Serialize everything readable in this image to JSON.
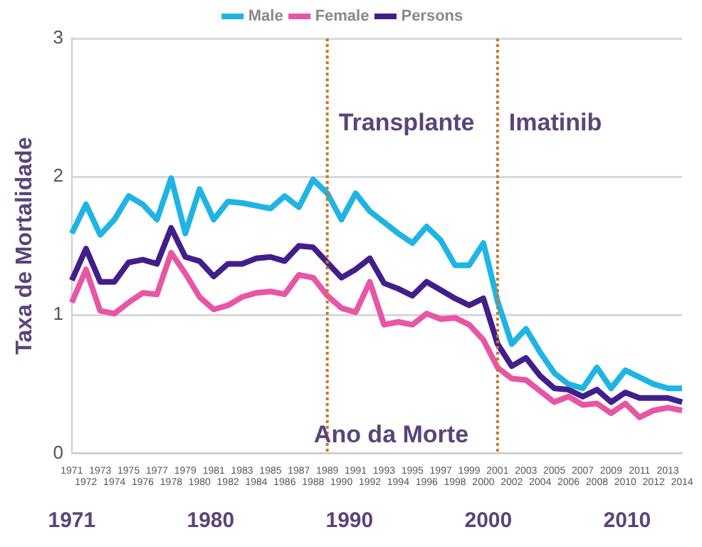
{
  "chart_data": {
    "type": "line",
    "xlabel": "Ano da Morte",
    "ylabel": "Taxa de Mortalidade",
    "categories": [
      "1971",
      "1972",
      "1973",
      "1974",
      "1975",
      "1976",
      "1977",
      "1978",
      "1979",
      "1980",
      "1981",
      "1982",
      "1983",
      "1984",
      "1985",
      "1986",
      "1987",
      "1988",
      "1989",
      "1990",
      "1991",
      "1992",
      "1993",
      "1994",
      "1995",
      "1996",
      "1997",
      "1998",
      "1999",
      "2000",
      "2001",
      "2002",
      "2003",
      "2004",
      "2005",
      "2006",
      "2007",
      "2008",
      "2009",
      "2010",
      "2011",
      "2012",
      "2013",
      "2014"
    ],
    "series": [
      {
        "name": "Male",
        "color": "#1eb4e4",
        "values": [
          1.59,
          1.8,
          1.58,
          1.69,
          1.86,
          1.8,
          1.69,
          1.99,
          1.59,
          1.91,
          1.69,
          1.82,
          1.81,
          1.79,
          1.77,
          1.86,
          1.78,
          1.98,
          1.88,
          1.69,
          1.88,
          1.75,
          1.67,
          1.59,
          1.52,
          1.64,
          1.54,
          1.36,
          1.36,
          1.52,
          1.1,
          0.79,
          0.9,
          0.73,
          0.58,
          0.5,
          0.47,
          0.62,
          0.47,
          0.6,
          0.55,
          0.5,
          0.47,
          0.47
        ]
      },
      {
        "name": "Female",
        "color": "#e855a5",
        "values": [
          1.09,
          1.33,
          1.03,
          1.01,
          1.09,
          1.16,
          1.15,
          1.45,
          1.3,
          1.13,
          1.04,
          1.07,
          1.13,
          1.16,
          1.17,
          1.15,
          1.29,
          1.27,
          1.14,
          1.05,
          1.02,
          1.24,
          0.93,
          0.95,
          0.93,
          1.01,
          0.97,
          0.98,
          0.93,
          0.82,
          0.62,
          0.54,
          0.53,
          0.45,
          0.37,
          0.41,
          0.35,
          0.36,
          0.29,
          0.36,
          0.26,
          0.31,
          0.33,
          0.31
        ]
      },
      {
        "name": "Persons",
        "color": "#421e8c",
        "values": [
          1.25,
          1.48,
          1.24,
          1.24,
          1.38,
          1.4,
          1.37,
          1.63,
          1.42,
          1.39,
          1.28,
          1.37,
          1.37,
          1.41,
          1.42,
          1.39,
          1.5,
          1.49,
          1.38,
          1.27,
          1.33,
          1.41,
          1.23,
          1.19,
          1.14,
          1.24,
          1.18,
          1.12,
          1.07,
          1.12,
          0.79,
          0.63,
          0.69,
          0.56,
          0.47,
          0.46,
          0.41,
          0.46,
          0.37,
          0.44,
          0.4,
          0.4,
          0.4,
          0.37
        ]
      }
    ],
    "ylim": [
      0,
      3
    ],
    "yticks": [
      0,
      1,
      2,
      3
    ],
    "grid": "y",
    "legend": "top",
    "marker": "none",
    "line_style": "solid",
    "ref_lines": [
      {
        "axis": "x",
        "value": "1989",
        "label": "Transplante",
        "color": "#c8782a",
        "line_style": "dotted"
      },
      {
        "axis": "x",
        "value": "2001",
        "label": "Imatinib",
        "color": "#c8782a",
        "line_style": "dotted"
      }
    ],
    "annotations": [
      "1971",
      "1980",
      "1990",
      "2000",
      "2010"
    ]
  }
}
